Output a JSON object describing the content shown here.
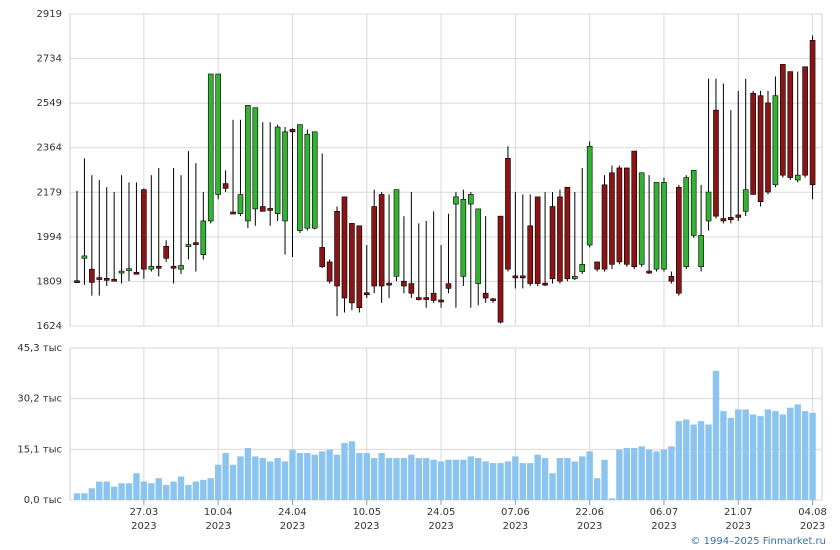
{
  "chart_data": [
    {
      "type": "candlestick",
      "open": [
        1812,
        1905,
        1860,
        1825,
        1822,
        1818,
        1848,
        1858,
        1847,
        2190,
        1860,
        1872,
        1955,
        1872,
        1860,
        1958,
        1970,
        1920,
        2060,
        2170,
        2215,
        2097,
        2090,
        2060,
        2110,
        2120,
        2112,
        2090,
        2060,
        2440,
        2020,
        2030,
        2030,
        1950,
        1890,
        2100,
        2160,
        2050,
        2040,
        1762,
        2120,
        2170,
        1802,
        1830,
        1810,
        1800,
        1742,
        1742,
        1760,
        1732,
        1800,
        2130,
        1830,
        2130,
        1800,
        1760,
        1737,
        2080,
        2320,
        1832,
        1832,
        2040,
        2160,
        1802,
        2120,
        2160,
        2200,
        1820,
        1850,
        1960,
        1890,
        2210,
        2260,
        2280,
        2280,
        2350,
        1880,
        1852,
        1860,
        1860,
        1830,
        2200,
        1870,
        2000,
        1870,
        2060,
        2520,
        2070,
        2075,
        2085,
        2100,
        2590,
        2580,
        2550,
        2210,
        2710,
        2680,
        2230,
        2700,
        2810
      ],
      "high": [
        2185,
        2320,
        2250,
        2230,
        2200,
        2180,
        2250,
        2220,
        2220,
        2195,
        2250,
        2280,
        1980,
        2280,
        2250,
        2350,
        2300,
        2180,
        2670,
        2670,
        2270,
        2480,
        2480,
        2540,
        2530,
        2470,
        2470,
        2460,
        2450,
        2445,
        2460,
        2440,
        2430,
        2340,
        1900,
        2120,
        2160,
        2050,
        2040,
        1960,
        2190,
        2180,
        2170,
        2190,
        2080,
        2180,
        2050,
        2060,
        2100,
        1960,
        2090,
        2180,
        2190,
        2180,
        2110,
        2080,
        1740,
        2080,
        2370,
        2180,
        2170,
        2170,
        2160,
        2180,
        2180,
        2190,
        2200,
        2180,
        2280,
        2390,
        1890,
        2250,
        2290,
        2290,
        2280,
        2350,
        2260,
        2250,
        2220,
        2240,
        1850,
        2210,
        2250,
        2270,
        2210,
        2650,
        2650,
        2630,
        2520,
        2600,
        2650,
        2600,
        2600,
        2600,
        2660,
        2710,
        2680,
        2680,
        2700,
        2830
      ],
      "low": [
        1805,
        1795,
        1750,
        1750,
        1790,
        1812,
        1800,
        1810,
        1838,
        1820,
        1850,
        1830,
        1890,
        1800,
        1840,
        1900,
        1850,
        1900,
        2050,
        2150,
        2180,
        2090,
        2080,
        2030,
        2040,
        2100,
        2040,
        2060,
        1920,
        1910,
        2010,
        2020,
        2025,
        1865,
        1800,
        1665,
        1680,
        1690,
        1680,
        1740,
        1760,
        1720,
        1740,
        1810,
        1760,
        1740,
        1730,
        1700,
        1720,
        1700,
        1760,
        1700,
        1790,
        1700,
        1710,
        1720,
        1720,
        1635,
        1850,
        1780,
        1780,
        1790,
        1790,
        1790,
        1800,
        1800,
        1810,
        1815,
        1840,
        1950,
        1850,
        1850,
        1860,
        1880,
        1870,
        1860,
        1870,
        1840,
        1850,
        1850,
        1800,
        1750,
        1860,
        1990,
        1850,
        2020,
        2070,
        2050,
        2050,
        2060,
        2080,
        2170,
        2120,
        2170,
        2200,
        2240,
        2230,
        2220,
        2240,
        2150
      ],
      "close": [
        1809,
        1915,
        1805,
        1822,
        1820,
        1815,
        1852,
        1862,
        1843,
        1860,
        1872,
        1870,
        1905,
        1868,
        1875,
        1962,
        1968,
        2060,
        2670,
        2670,
        2195,
        2093,
        2170,
        2540,
        2530,
        2100,
        2108,
        2450,
        2430,
        2430,
        2460,
        2420,
        2430,
        1870,
        1810,
        1790,
        1740,
        1720,
        1700,
        1758,
        1790,
        1790,
        1798,
        2190,
        1790,
        1760,
        1738,
        1738,
        1730,
        1728,
        1780,
        2160,
        2150,
        2170,
        2110,
        1740,
        1733,
        1640,
        1860,
        1828,
        1828,
        1800,
        1800,
        1798,
        1820,
        1810,
        1820,
        1830,
        1880,
        2370,
        1860,
        1860,
        1880,
        1890,
        1880,
        1870,
        2260,
        1848,
        2220,
        2220,
        1810,
        1760,
        2240,
        2270,
        2000,
        2180,
        2080,
        2060,
        2065,
        2075,
        2190,
        2170,
        2140,
        2180,
        2580,
        2250,
        2240,
        2250,
        2250,
        2210
      ],
      "up_color": "#33b233",
      "down_color": "#8b1414",
      "ylim": [
        1624,
        2919
      ],
      "yticks": [
        1624,
        1809,
        1994,
        2179,
        2364,
        2549,
        2734,
        2919
      ],
      "grid": true
    },
    {
      "type": "bar",
      "values": [
        2,
        2,
        3.5,
        5.5,
        5.5,
        4,
        5,
        5,
        8,
        5.5,
        5,
        6.5,
        4.5,
        5.5,
        7,
        4.5,
        5.5,
        6,
        6.5,
        10.5,
        14,
        10.5,
        13,
        15.5,
        13,
        12.5,
        11.5,
        12.5,
        11.5,
        15,
        14,
        14,
        13.5,
        14.5,
        15,
        13.5,
        17,
        17.5,
        14,
        14,
        12.5,
        14,
        12.5,
        12.5,
        12.5,
        13.5,
        12.5,
        12.5,
        12,
        11.5,
        12,
        12,
        12,
        13,
        12.5,
        11.5,
        11,
        11,
        11.5,
        13,
        11,
        11,
        13.5,
        12.5,
        8,
        12.5,
        12.5,
        11.5,
        13,
        14.5,
        6.5,
        12,
        0.5,
        15,
        15.5,
        15.5,
        16,
        15,
        14.5,
        15,
        16,
        23.5,
        24,
        22.5,
        23.5,
        22.5,
        38.5,
        26.5,
        24.5,
        27,
        27,
        25.5,
        25,
        27,
        26.5,
        25.5,
        27.5,
        28.5,
        26.5,
        26
      ],
      "color": "#8cc4f0",
      "categories": [
        null,
        null,
        null,
        null,
        null,
        null,
        null,
        null,
        null,
        "27.03",
        null,
        null,
        null,
        null,
        null,
        null,
        null,
        null,
        null,
        "10.04",
        null,
        null,
        null,
        null,
        null,
        null,
        null,
        null,
        null,
        "24.04",
        null,
        null,
        null,
        null,
        null,
        null,
        null,
        null,
        null,
        "10.05",
        null,
        null,
        null,
        null,
        null,
        null,
        null,
        null,
        null,
        "24.05",
        null,
        null,
        null,
        null,
        null,
        null,
        null,
        null,
        null,
        "07.06",
        null,
        null,
        null,
        null,
        null,
        null,
        null,
        null,
        null,
        "22.06",
        null,
        null,
        null,
        null,
        null,
        null,
        null,
        null,
        null,
        "06.07",
        null,
        null,
        null,
        null,
        null,
        null,
        null,
        null,
        null,
        "21.07",
        null,
        null,
        null,
        null,
        null,
        null,
        null,
        null,
        null,
        "04.08"
      ],
      "years": [
        null,
        null,
        null,
        null,
        null,
        null,
        null,
        null,
        null,
        "2023",
        null,
        null,
        null,
        null,
        null,
        null,
        null,
        null,
        null,
        "2023",
        null,
        null,
        null,
        null,
        null,
        null,
        null,
        null,
        null,
        "2023",
        null,
        null,
        null,
        null,
        null,
        null,
        null,
        null,
        null,
        "2023",
        null,
        null,
        null,
        null,
        null,
        null,
        null,
        null,
        null,
        "2023",
        null,
        null,
        null,
        null,
        null,
        null,
        null,
        null,
        null,
        "2023",
        null,
        null,
        null,
        null,
        null,
        null,
        null,
        null,
        null,
        "2023",
        null,
        null,
        null,
        null,
        null,
        null,
        null,
        null,
        null,
        "2023",
        null,
        null,
        null,
        null,
        null,
        null,
        null,
        null,
        null,
        "2023",
        null,
        null,
        null,
        null,
        null,
        null,
        null,
        null,
        null,
        "2023"
      ],
      "ylim": [
        0,
        45.3
      ],
      "yticks": [
        {
          "value": 0,
          "label": "0,0 тыс"
        },
        {
          "value": 15.1,
          "label": "15,1 тыс"
        },
        {
          "value": 30.2,
          "label": "30,2 тыс"
        },
        {
          "value": 45.3,
          "label": "45,3 тыс"
        }
      ],
      "grid": true
    }
  ],
  "footer": "© 1994–2025 Finmarket.ru"
}
